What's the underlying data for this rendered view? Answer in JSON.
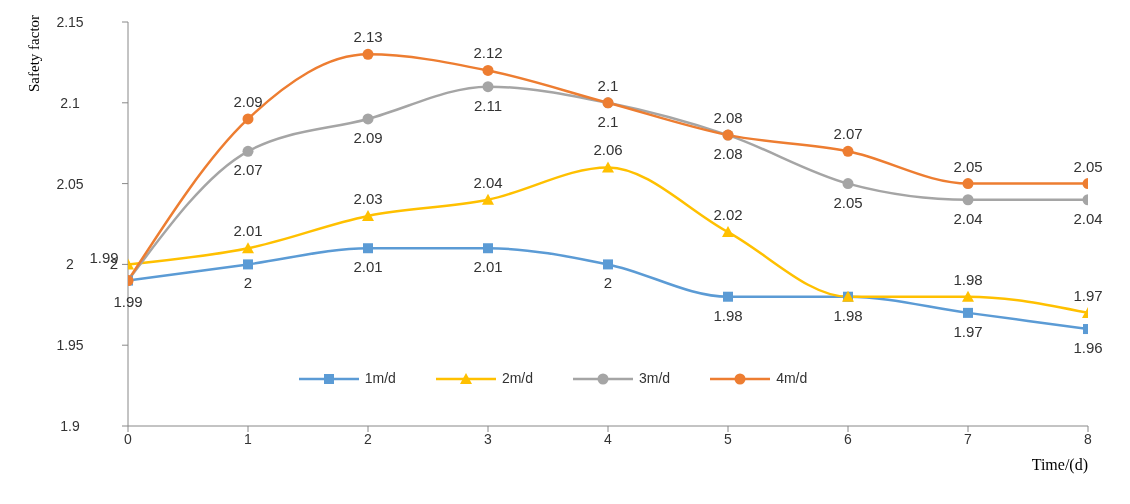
{
  "chart_data": {
    "type": "line",
    "xlabel": "Time/(d)",
    "ylabel": "Safety factor",
    "x": [
      0,
      1,
      2,
      3,
      4,
      5,
      6,
      7,
      8
    ],
    "xlim": [
      0,
      8
    ],
    "xticks": [
      0,
      1,
      2,
      3,
      4,
      5,
      6,
      7,
      8
    ],
    "ylim": [
      1.9,
      2.15
    ],
    "yticks": [
      1.9,
      1.95,
      2,
      2.05,
      2.1,
      2.15
    ],
    "legend": "bottom",
    "series": [
      {
        "name": "1m/d",
        "color": "#5b9bd5",
        "marker": "square",
        "values": [
          1.99,
          2,
          2.01,
          2.01,
          2,
          1.98,
          1.98,
          1.97,
          1.96
        ],
        "value_labels": [
          "1.99",
          "2",
          "2.01",
          "2.01",
          "2",
          "1.98",
          "1.98",
          "1.97",
          "1.96"
        ]
      },
      {
        "name": "2m/d",
        "color": "#ffc000",
        "marker": "triangle",
        "values": [
          2,
          2.01,
          2.03,
          2.04,
          2.06,
          2.02,
          1.98,
          1.98,
          1.97
        ],
        "value_labels": [
          "2",
          "2.01",
          "2.03",
          "2.04",
          "2.06",
          "2.02",
          null,
          "1.98",
          "1.97"
        ]
      },
      {
        "name": "3m/d",
        "color": "#a5a5a5",
        "marker": "circle",
        "values": [
          1.99,
          2.07,
          2.09,
          2.11,
          2.1,
          2.08,
          2.05,
          2.04,
          2.04
        ],
        "value_labels": [
          null,
          "2.07",
          "2.09",
          "2.11",
          "2.1",
          "2.08",
          "2.05",
          "2.04",
          "2.04"
        ]
      },
      {
        "name": "4m/d",
        "color": "#ed7d31",
        "marker": "circle",
        "values": [
          1.99,
          2.09,
          2.13,
          2.12,
          2.1,
          2.08,
          2.07,
          2.05,
          2.05
        ],
        "value_labels": [
          "1.99",
          "2.09",
          "2.13",
          "2.12",
          "2.1",
          "2.08",
          "2.07",
          "2.05",
          "2.05"
        ]
      }
    ]
  }
}
